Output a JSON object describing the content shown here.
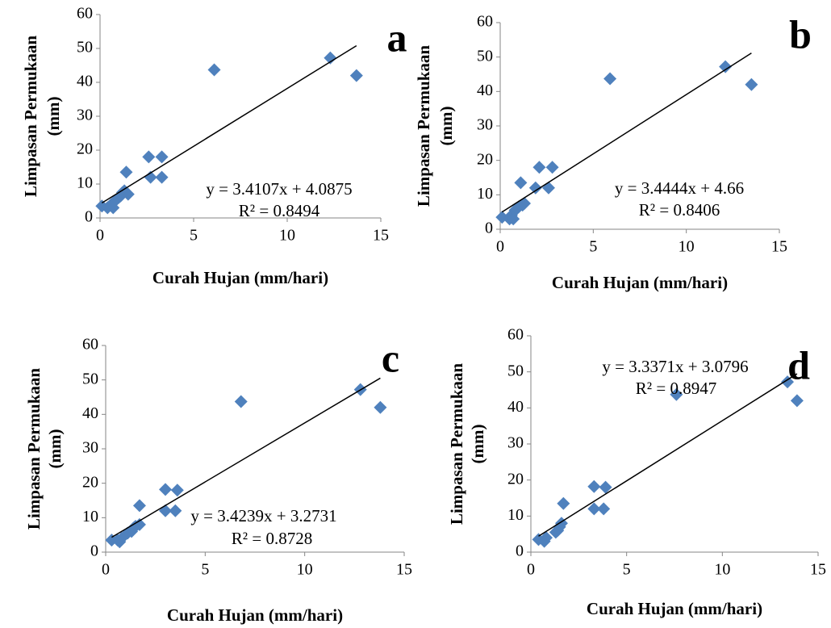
{
  "chart_data": [
    {
      "type": "scatter",
      "panel_label": "a",
      "x_label": "Curah Hujan (mm/hari)",
      "y_label": [
        "Limpasan Permukaan",
        "(mm)"
      ],
      "x": [
        0.1,
        0.4,
        0.6,
        0.7,
        0.8,
        1.0,
        1.1,
        1.2,
        1.3,
        1.5,
        1.4,
        2.6,
        2.7,
        3.3,
        3.3,
        6.1,
        12.3,
        13.7
      ],
      "y": [
        3.5,
        3,
        4,
        3,
        5,
        6,
        6.5,
        7.5,
        8,
        7,
        13.5,
        18,
        12,
        18,
        12,
        43.7,
        47.2,
        42
      ],
      "color": "#4f81bd",
      "xlim": [
        0,
        15
      ],
      "ylim": [
        0,
        60
      ],
      "xticks": [
        0,
        5,
        10,
        15
      ],
      "yticks": [
        0,
        10,
        20,
        30,
        40,
        50,
        60
      ],
      "trendline": {
        "slope": 3.4107,
        "intercept": 4.0875,
        "xlim": [
          0.1,
          13.7
        ]
      },
      "equation": "y = 3.4107x + 4.0875",
      "r_squared": "R² = 0.8494"
    },
    {
      "type": "scatter",
      "panel_label": "b",
      "x_label": "Curah Hujan (mm/hari)",
      "y_label": [
        "Limpasan Permukaan",
        "(mm)"
      ],
      "x": [
        0.1,
        0.5,
        0.6,
        0.7,
        0.8,
        0.9,
        1.0,
        1.2,
        1.3,
        1.1,
        1.9,
        2.1,
        2.6,
        2.8,
        5.9,
        12.1,
        13.5
      ],
      "y": [
        3.5,
        3,
        4,
        3,
        5.5,
        6,
        6.5,
        7,
        7.5,
        13.5,
        12,
        18,
        12,
        18,
        43.7,
        47.2,
        42
      ],
      "color": "#4f81bd",
      "xlim": [
        0,
        15
      ],
      "ylim": [
        0,
        60
      ],
      "xticks": [
        0,
        5,
        10,
        15
      ],
      "yticks": [
        0,
        10,
        20,
        30,
        40,
        50,
        60
      ],
      "trendline": {
        "slope": 3.4444,
        "intercept": 4.66,
        "xlim": [
          0.1,
          13.5
        ]
      },
      "equation": "y = 3.4444x + 4.66",
      "r_squared": "R² = 0.8406"
    },
    {
      "type": "scatter",
      "panel_label": "c",
      "x_label": "Curah Hujan (mm/hari)",
      "y_label": [
        "Limpasan Permukaan",
        "(mm)"
      ],
      "x": [
        0.3,
        0.6,
        0.7,
        0.8,
        1.1,
        1.3,
        1.4,
        1.5,
        1.7,
        1.7,
        3.0,
        3.0,
        3.5,
        3.6,
        6.8,
        12.8,
        13.8
      ],
      "y": [
        3.5,
        3.5,
        3,
        4,
        5.5,
        6,
        7,
        7.5,
        8,
        13.5,
        18.2,
        12,
        12,
        18,
        43.7,
        47.2,
        42
      ],
      "color": "#4f81bd",
      "xlim": [
        0,
        15
      ],
      "ylim": [
        0,
        60
      ],
      "xticks": [
        0,
        5,
        10,
        15
      ],
      "yticks": [
        0,
        10,
        20,
        30,
        40,
        50,
        60
      ],
      "trendline": {
        "slope": 3.4239,
        "intercept": 3.2731,
        "xlim": [
          0.3,
          13.8
        ]
      },
      "equation": "y = 3.4239x + 3.2731",
      "r_squared": "R² = 0.8728"
    },
    {
      "type": "scatter",
      "panel_label": "d",
      "x_label": "Curah Hujan (mm/hari)",
      "y_label": [
        "Limpasan Permukaan",
        "(mm)"
      ],
      "x": [
        0.4,
        0.7,
        0.8,
        1.3,
        1.4,
        1.5,
        1.6,
        1.7,
        3.3,
        3.3,
        3.8,
        3.9,
        7.6,
        13.4,
        13.9
      ],
      "y": [
        3.5,
        3,
        4,
        5.5,
        6,
        7,
        8,
        13.5,
        18.2,
        12,
        12,
        18,
        43.7,
        47.2,
        42
      ],
      "color": "#4f81bd",
      "xlim": [
        0,
        15
      ],
      "ylim": [
        0,
        60
      ],
      "xticks": [
        0,
        5,
        10,
        15
      ],
      "yticks": [
        0,
        10,
        20,
        30,
        40,
        50,
        60
      ],
      "trendline": {
        "slope": 3.3371,
        "intercept": 3.0796,
        "xlim": [
          0.4,
          13.9
        ]
      },
      "equation": "y = 3.3371x + 3.0796",
      "r_squared": "R² = 0.8947"
    }
  ]
}
